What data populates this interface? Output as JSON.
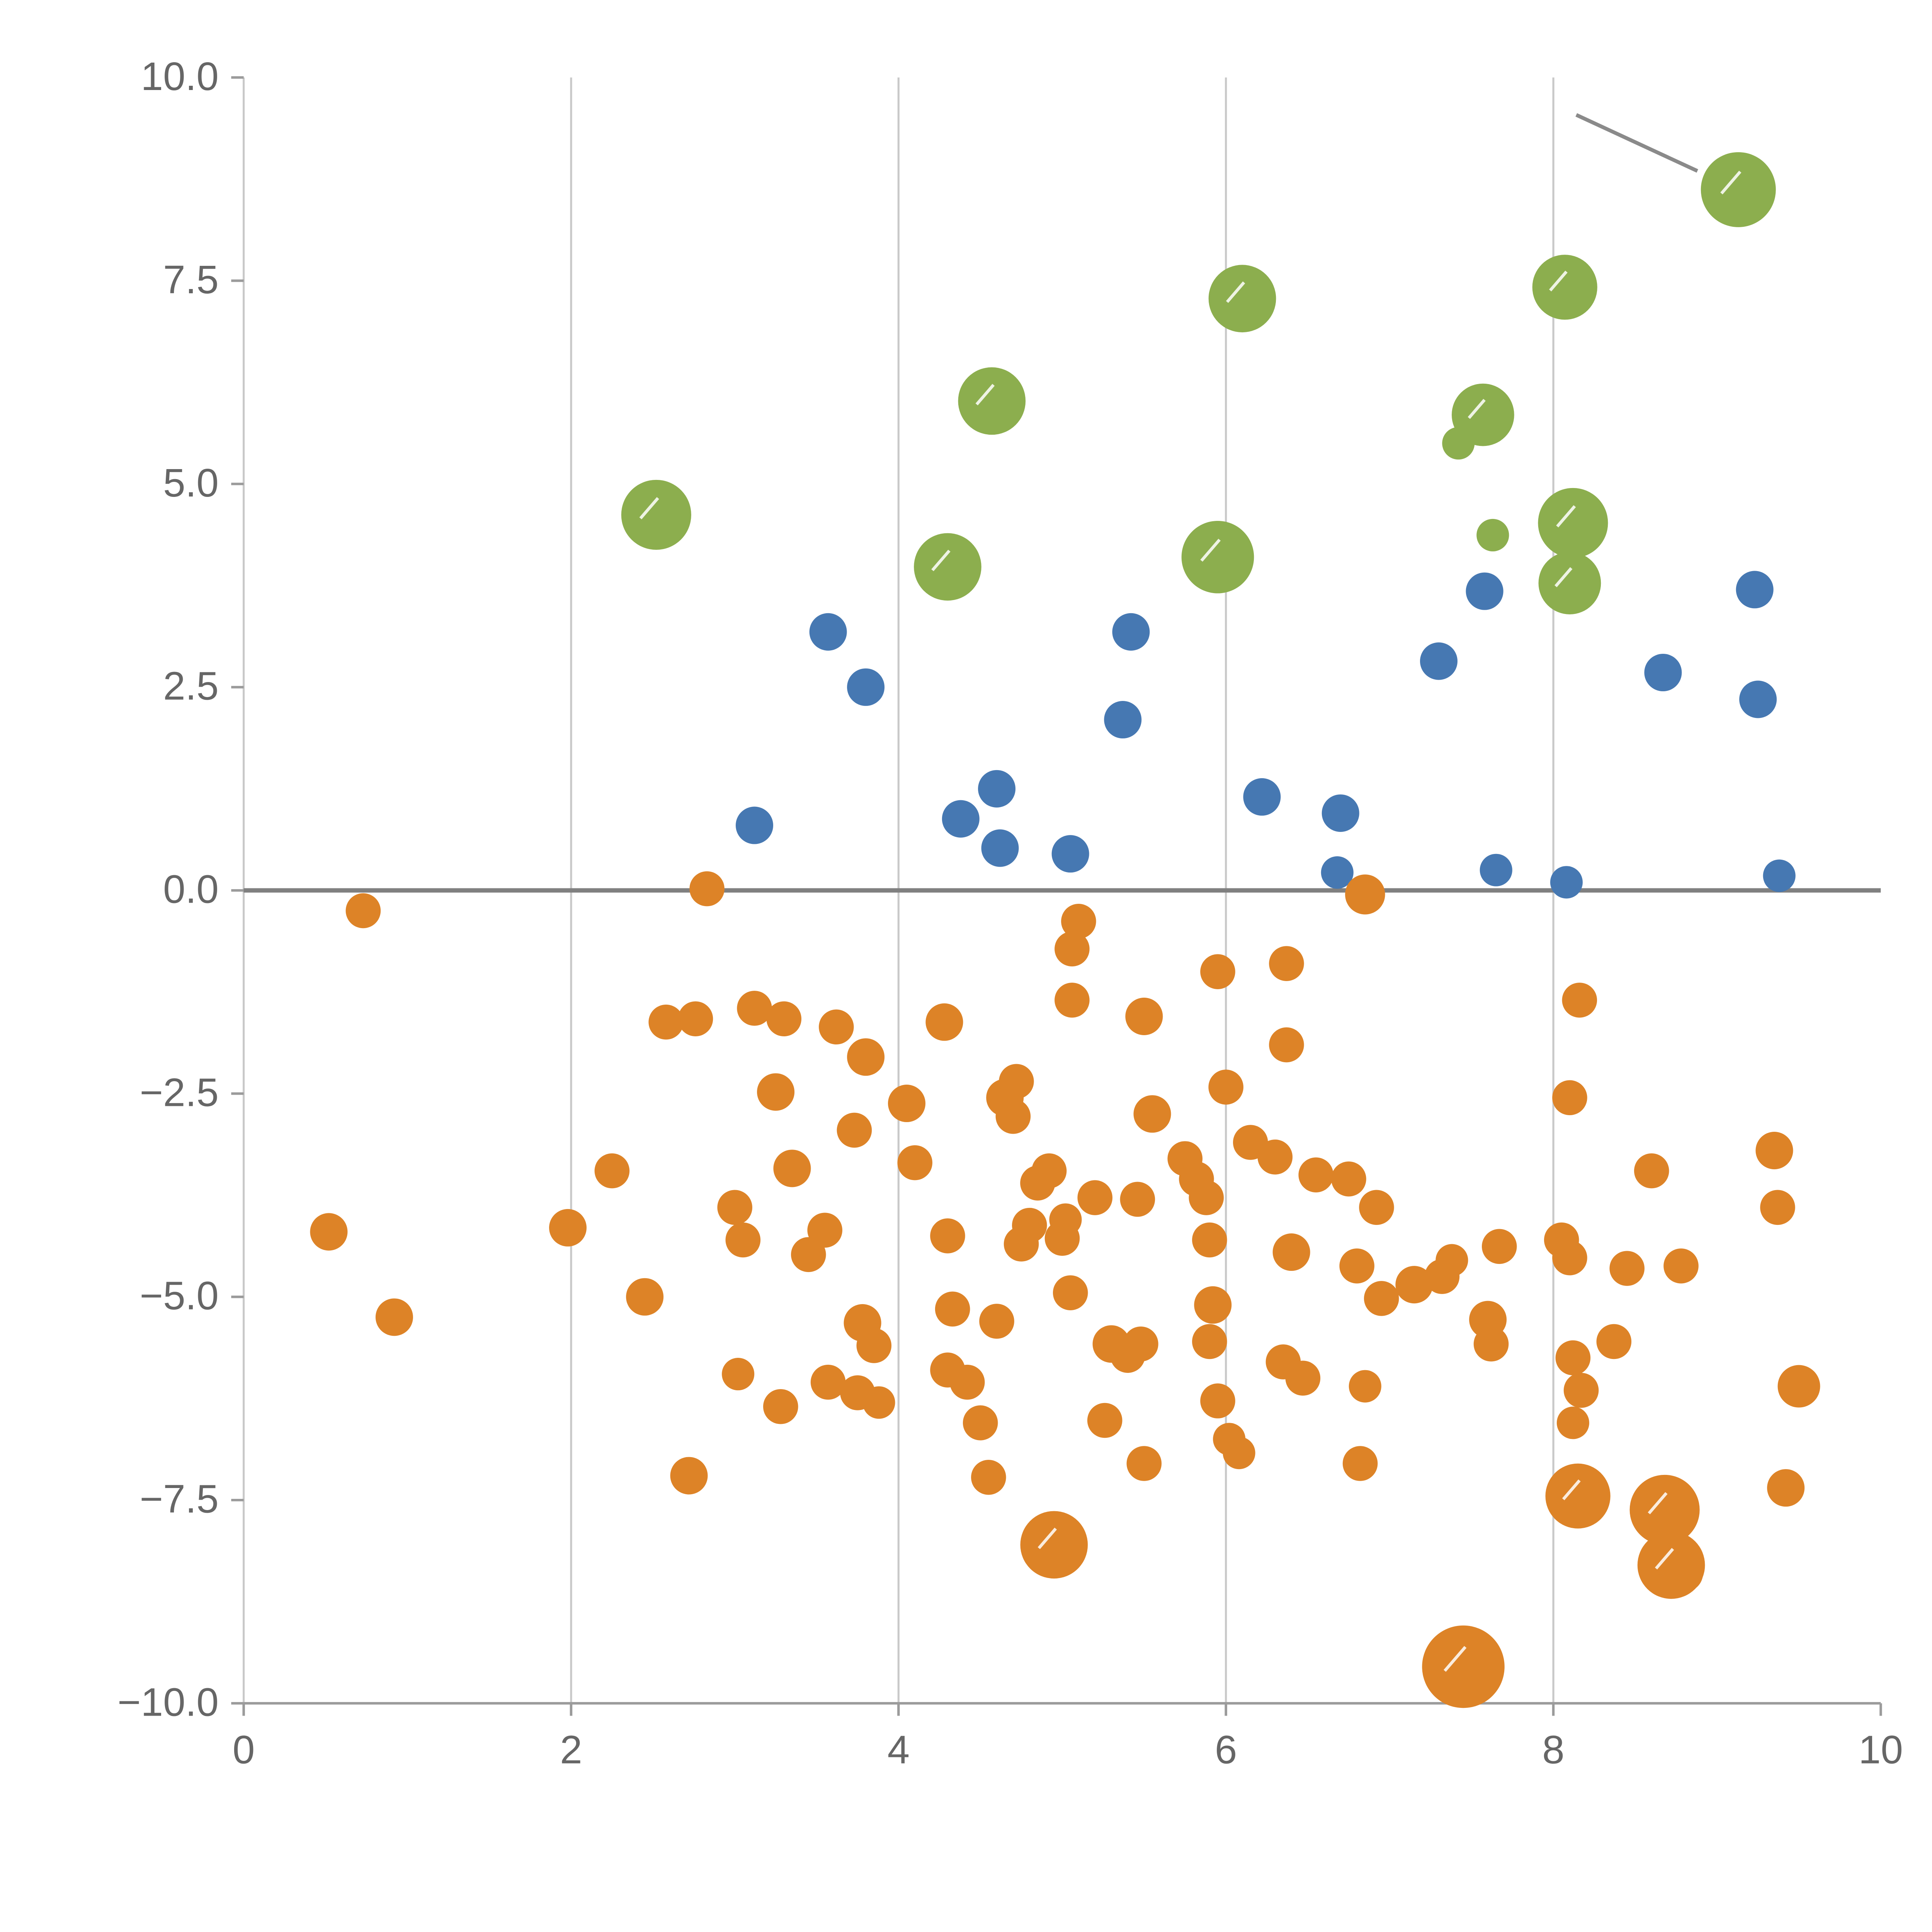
{
  "chart_data": {
    "type": "scatter",
    "title": "",
    "xlabel": "",
    "ylabel": "",
    "xlim": [
      0,
      10
    ],
    "ylim": [
      -10,
      10
    ],
    "grid": "vertical-only",
    "x_ticks": [
      0,
      2,
      4,
      6,
      8,
      10
    ],
    "x_tick_labels": [
      "0",
      "2",
      "4",
      "6",
      "8",
      "10"
    ],
    "y_ticks": [
      10.0,
      7.5,
      5.0,
      2.5,
      0.0,
      -2.5,
      -5.0,
      -7.5,
      -10.0
    ],
    "y_tick_labels": [
      "10.0",
      "7.5",
      "5.0",
      "2.5",
      "0.0",
      "−2.5",
      "−5.0",
      "−7.5",
      "−10.0"
    ],
    "zero_line": {
      "y": 0,
      "color": "#808080",
      "width": 3.5
    },
    "colors": {
      "green": "#8cae4e",
      "blue": "#4678b2",
      "orange": "#dd8327",
      "grid": "#c9c9c9",
      "axis": "#9b9b9b",
      "tick_label": "#666666",
      "annotation_line": "#8a8a8a",
      "whisker": "#ffffff"
    },
    "legend": "none",
    "annotation_line": {
      "from": [
        8.14,
        9.54
      ],
      "to": [
        8.88,
        8.85
      ]
    },
    "series": [
      {
        "name": "green-bubbles",
        "color_key": "green",
        "points": [
          [
            2.52,
            4.62,
            28
          ],
          [
            4.57,
            6.02,
            27
          ],
          [
            4.3,
            3.98,
            27
          ],
          [
            6.1,
            7.28,
            27
          ],
          [
            5.95,
            4.1,
            29
          ],
          [
            7.57,
            5.85,
            25
          ],
          [
            7.42,
            5.5,
            13
          ],
          [
            7.63,
            4.37,
            13
          ],
          [
            8.12,
            4.52,
            28
          ],
          [
            8.1,
            3.78,
            25
          ],
          [
            8.07,
            7.42,
            26
          ],
          [
            9.13,
            8.62,
            30
          ]
        ]
      },
      {
        "name": "blue-dots",
        "color_key": "blue",
        "points": [
          [
            3.57,
            3.18,
            15
          ],
          [
            3.8,
            2.5,
            15
          ],
          [
            3.12,
            0.8,
            15
          ],
          [
            4.38,
            0.88,
            15
          ],
          [
            4.6,
            1.25,
            15
          ],
          [
            4.62,
            0.52,
            15
          ],
          [
            5.05,
            0.45,
            15
          ],
          [
            5.42,
            3.18,
            15
          ],
          [
            5.37,
            2.1,
            15
          ],
          [
            6.22,
            1.15,
            15
          ],
          [
            6.7,
            0.95,
            15
          ],
          [
            6.68,
            0.22,
            13
          ],
          [
            7.3,
            2.82,
            15
          ],
          [
            7.58,
            3.68,
            15
          ],
          [
            7.65,
            0.25,
            13
          ],
          [
            8.08,
            0.1,
            13
          ],
          [
            8.67,
            2.68,
            15
          ],
          [
            9.23,
            3.7,
            15
          ],
          [
            9.25,
            2.35,
            15
          ],
          [
            9.38,
            0.18,
            13
          ]
        ]
      },
      {
        "name": "orange-dots",
        "color_key": "orange",
        "points": [
          [
            0.52,
            -4.2,
            15
          ],
          [
            0.73,
            -0.25,
            14
          ],
          [
            0.92,
            -5.25,
            15
          ],
          [
            1.98,
            -4.15,
            15
          ],
          [
            2.25,
            -3.45,
            14
          ],
          [
            2.45,
            -5.0,
            15
          ],
          [
            2.58,
            -1.62,
            14
          ],
          [
            2.76,
            -1.58,
            14
          ],
          [
            2.83,
            0.02,
            14
          ],
          [
            2.72,
            -7.2,
            15
          ],
          [
            3.0,
            -3.9,
            14
          ],
          [
            3.05,
            -4.3,
            14
          ],
          [
            3.12,
            -1.45,
            14
          ],
          [
            3.3,
            -1.58,
            14
          ],
          [
            3.25,
            -2.48,
            15
          ],
          [
            3.02,
            -5.95,
            13
          ],
          [
            3.28,
            -6.35,
            14
          ],
          [
            3.35,
            -3.42,
            15
          ],
          [
            3.45,
            -4.48,
            14
          ],
          [
            3.55,
            -4.18,
            14
          ],
          [
            3.57,
            -6.05,
            14
          ],
          [
            3.62,
            -1.68,
            14
          ],
          [
            3.8,
            -2.05,
            15
          ],
          [
            3.73,
            -2.95,
            14
          ],
          [
            3.78,
            -5.32,
            15
          ],
          [
            3.85,
            -5.6,
            14
          ],
          [
            3.75,
            -6.18,
            14
          ],
          [
            3.88,
            -6.3,
            13
          ],
          [
            4.05,
            -2.62,
            15
          ],
          [
            4.1,
            -3.35,
            14
          ],
          [
            4.28,
            -1.62,
            15
          ],
          [
            4.3,
            -4.25,
            14
          ],
          [
            4.33,
            -5.15,
            14
          ],
          [
            4.3,
            -5.9,
            14
          ],
          [
            4.42,
            -6.05,
            14
          ],
          [
            4.5,
            -6.55,
            14
          ],
          [
            4.55,
            -7.22,
            14
          ],
          [
            4.6,
            -5.3,
            14
          ],
          [
            4.65,
            -2.55,
            15
          ],
          [
            4.7,
            -2.78,
            14
          ],
          [
            4.72,
            -2.35,
            14
          ],
          [
            4.75,
            -4.35,
            14
          ],
          [
            4.8,
            -4.12,
            14
          ],
          [
            4.85,
            -3.6,
            14
          ],
          [
            4.92,
            -3.45,
            14
          ],
          [
            5.0,
            -4.28,
            14
          ],
          [
            5.02,
            -4.05,
            13
          ],
          [
            5.05,
            -4.95,
            14
          ],
          [
            4.95,
            -8.05,
            27
          ],
          [
            5.1,
            -0.38,
            14
          ],
          [
            5.06,
            -0.72,
            14
          ],
          [
            5.06,
            -1.35,
            14
          ],
          [
            5.2,
            -3.78,
            14
          ],
          [
            5.3,
            -5.58,
            15
          ],
          [
            5.4,
            -5.72,
            14
          ],
          [
            5.48,
            -5.58,
            14
          ],
          [
            5.26,
            -6.52,
            14
          ],
          [
            5.5,
            -7.05,
            14
          ],
          [
            5.5,
            -1.55,
            15
          ],
          [
            5.55,
            -2.75,
            15
          ],
          [
            5.46,
            -3.8,
            14
          ],
          [
            5.75,
            -3.3,
            14
          ],
          [
            5.82,
            -3.55,
            14
          ],
          [
            5.88,
            -3.78,
            14
          ],
          [
            5.9,
            -4.3,
            14
          ],
          [
            5.95,
            -1.0,
            14
          ],
          [
            6.0,
            -2.42,
            14
          ],
          [
            5.92,
            -5.1,
            15
          ],
          [
            5.9,
            -5.55,
            14
          ],
          [
            5.95,
            -6.28,
            14
          ],
          [
            6.02,
            -6.75,
            13
          ],
          [
            6.08,
            -6.92,
            13
          ],
          [
            6.15,
            -3.1,
            14
          ],
          [
            6.3,
            -3.28,
            14
          ],
          [
            6.37,
            -1.9,
            14
          ],
          [
            6.37,
            -0.9,
            14
          ],
          [
            6.4,
            -4.45,
            15
          ],
          [
            6.35,
            -5.8,
            14
          ],
          [
            6.47,
            -6.0,
            14
          ],
          [
            6.55,
            -3.5,
            14
          ],
          [
            6.75,
            -3.55,
            14
          ],
          [
            6.8,
            -4.62,
            14
          ],
          [
            6.92,
            -3.9,
            14
          ],
          [
            6.95,
            -5.02,
            14
          ],
          [
            6.85,
            -6.1,
            13
          ],
          [
            6.82,
            -7.05,
            14
          ],
          [
            6.85,
            -0.05,
            16
          ],
          [
            7.15,
            -4.85,
            15
          ],
          [
            7.32,
            -4.75,
            14
          ],
          [
            7.38,
            -4.55,
            13
          ],
          [
            7.6,
            -5.28,
            15
          ],
          [
            7.62,
            -5.58,
            14
          ],
          [
            7.67,
            -4.38,
            14
          ],
          [
            7.45,
            -9.55,
            33
          ],
          [
            8.05,
            -4.3,
            14
          ],
          [
            8.1,
            -4.52,
            14
          ],
          [
            8.12,
            -5.75,
            14
          ],
          [
            8.17,
            -6.15,
            14
          ],
          [
            8.12,
            -6.55,
            13
          ],
          [
            8.15,
            -7.45,
            26
          ],
          [
            8.16,
            -1.35,
            14
          ],
          [
            8.1,
            -2.55,
            14
          ],
          [
            8.37,
            -5.55,
            14
          ],
          [
            8.45,
            -4.65,
            14
          ],
          [
            8.6,
            -3.45,
            14
          ],
          [
            8.68,
            -7.62,
            28
          ],
          [
            8.72,
            -8.3,
            27
          ],
          [
            8.8,
            -8.4,
            15
          ],
          [
            8.78,
            -4.62,
            14
          ],
          [
            9.35,
            -3.2,
            15
          ],
          [
            9.37,
            -3.9,
            14
          ],
          [
            9.5,
            -6.1,
            17
          ],
          [
            9.42,
            -7.35,
            15
          ]
        ]
      }
    ]
  }
}
